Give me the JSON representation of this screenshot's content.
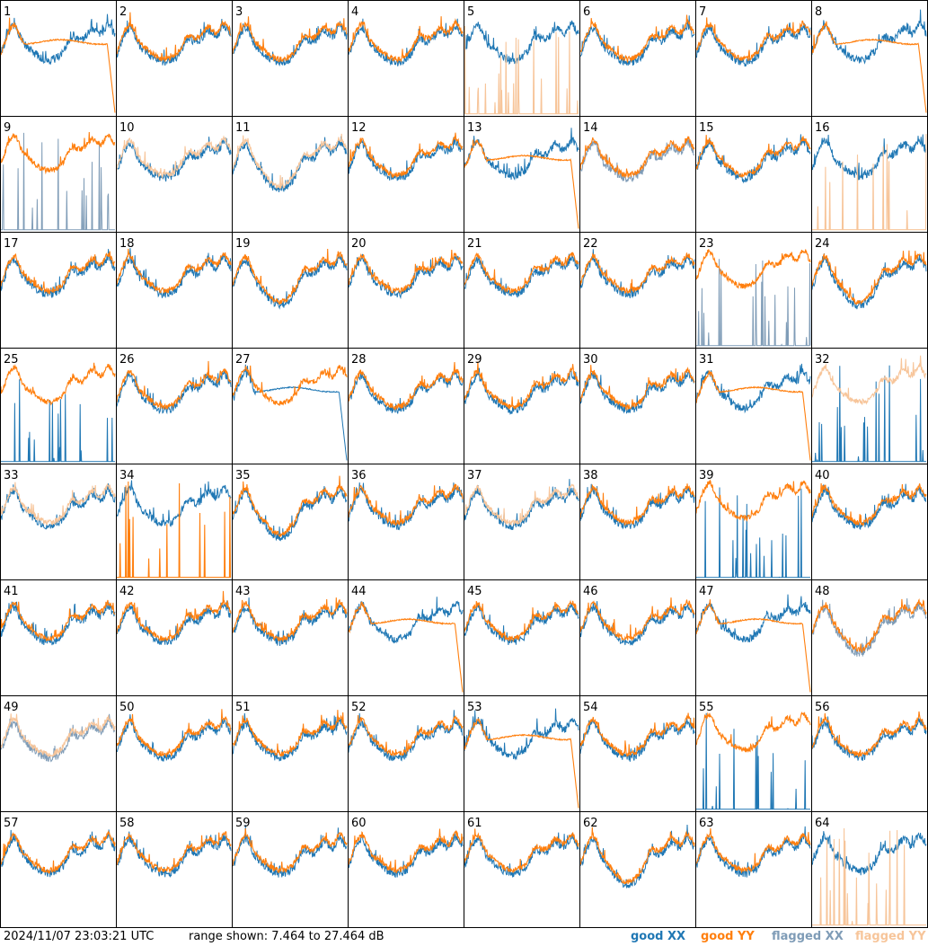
{
  "timestamp": "2024/11/07 23:03:21 UTC",
  "range_text": "range shown: 7.464 to 27.464 dB",
  "legend": [
    {
      "key": "good_xx",
      "label": "good XX",
      "color": "#1f77b4"
    },
    {
      "key": "good_yy",
      "label": "good YY",
      "color": "#ff7f0e"
    },
    {
      "key": "flagged_xx",
      "label": "flagged XX",
      "color": "#7f9cb7"
    },
    {
      "key": "flagged_yy",
      "label": "flagged YY",
      "color": "#f7c59a"
    }
  ],
  "chart_data": {
    "type": "line",
    "grid": {
      "rows": 8,
      "cols": 8
    },
    "ylim": [
      7.464,
      27.464
    ],
    "yunit": "dB",
    "panels": [
      {
        "id": "1",
        "xx": "good",
        "yy": "good",
        "style": "drop_yy"
      },
      {
        "id": "2",
        "xx": "good",
        "yy": "good",
        "style": "normal"
      },
      {
        "id": "3",
        "xx": "good",
        "yy": "good",
        "style": "normal"
      },
      {
        "id": "4",
        "xx": "good",
        "yy": "good",
        "style": "normal"
      },
      {
        "id": "5",
        "xx": "good",
        "yy": "flagged",
        "style": "spikes_yy"
      },
      {
        "id": "6",
        "xx": "good",
        "yy": "good",
        "style": "normal"
      },
      {
        "id": "7",
        "xx": "good",
        "yy": "good",
        "style": "normal"
      },
      {
        "id": "8",
        "xx": "good",
        "yy": "good",
        "style": "drop_yy"
      },
      {
        "id": "9",
        "xx": "flagged",
        "yy": "good",
        "style": "spikes_xx"
      },
      {
        "id": "10",
        "xx": "good",
        "yy": "flagged",
        "style": "normal"
      },
      {
        "id": "11",
        "xx": "good",
        "yy": "flagged",
        "style": "deep"
      },
      {
        "id": "12",
        "xx": "good",
        "yy": "good",
        "style": "normal"
      },
      {
        "id": "13",
        "xx": "good",
        "yy": "good",
        "style": "drop_yy"
      },
      {
        "id": "14",
        "xx": "flagged",
        "yy": "good",
        "style": "normal"
      },
      {
        "id": "15",
        "xx": "good",
        "yy": "good",
        "style": "normal"
      },
      {
        "id": "16",
        "xx": "good",
        "yy": "flagged",
        "style": "spikes_yy"
      },
      {
        "id": "17",
        "xx": "good",
        "yy": "good",
        "style": "normal"
      },
      {
        "id": "18",
        "xx": "good",
        "yy": "good",
        "style": "normal"
      },
      {
        "id": "19",
        "xx": "good",
        "yy": "good",
        "style": "deep"
      },
      {
        "id": "20",
        "xx": "good",
        "yy": "good",
        "style": "normal"
      },
      {
        "id": "21",
        "xx": "good",
        "yy": "good",
        "style": "normal"
      },
      {
        "id": "22",
        "xx": "good",
        "yy": "good",
        "style": "normal"
      },
      {
        "id": "23",
        "xx": "flagged",
        "yy": "good",
        "style": "spikes_xx"
      },
      {
        "id": "24",
        "xx": "good",
        "yy": "good",
        "style": "deep"
      },
      {
        "id": "25",
        "xx": "good",
        "yy": "good",
        "style": "spikes_xx"
      },
      {
        "id": "26",
        "xx": "good",
        "yy": "good",
        "style": "normal"
      },
      {
        "id": "27",
        "xx": "good",
        "yy": "good",
        "style": "drop_xx"
      },
      {
        "id": "28",
        "xx": "good",
        "yy": "good",
        "style": "normal"
      },
      {
        "id": "29",
        "xx": "good",
        "yy": "good",
        "style": "normal"
      },
      {
        "id": "30",
        "xx": "good",
        "yy": "good",
        "style": "normal"
      },
      {
        "id": "31",
        "xx": "good",
        "yy": "good",
        "style": "drop_yy"
      },
      {
        "id": "32",
        "xx": "good",
        "yy": "flagged",
        "style": "spikes_xx"
      },
      {
        "id": "33",
        "xx": "good",
        "yy": "flagged",
        "style": "normal"
      },
      {
        "id": "34",
        "xx": "good",
        "yy": "good",
        "style": "spikes_yy"
      },
      {
        "id": "35",
        "xx": "good",
        "yy": "good",
        "style": "deep"
      },
      {
        "id": "36",
        "xx": "good",
        "yy": "good",
        "style": "normal"
      },
      {
        "id": "37",
        "xx": "good",
        "yy": "flagged",
        "style": "normal"
      },
      {
        "id": "38",
        "xx": "good",
        "yy": "good",
        "style": "normal"
      },
      {
        "id": "39",
        "xx": "good",
        "yy": "good",
        "style": "spikes_xx"
      },
      {
        "id": "40",
        "xx": "good",
        "yy": "good",
        "style": "normal"
      },
      {
        "id": "41",
        "xx": "good",
        "yy": "good",
        "style": "normal"
      },
      {
        "id": "42",
        "xx": "good",
        "yy": "good",
        "style": "normal"
      },
      {
        "id": "43",
        "xx": "good",
        "yy": "good",
        "style": "normal"
      },
      {
        "id": "44",
        "xx": "good",
        "yy": "good",
        "style": "drop_yy"
      },
      {
        "id": "45",
        "xx": "good",
        "yy": "good",
        "style": "normal"
      },
      {
        "id": "46",
        "xx": "good",
        "yy": "good",
        "style": "normal"
      },
      {
        "id": "47",
        "xx": "good",
        "yy": "good",
        "style": "drop_yy"
      },
      {
        "id": "48",
        "xx": "flagged",
        "yy": "good",
        "style": "deep"
      },
      {
        "id": "49",
        "xx": "flagged",
        "yy": "flagged",
        "style": "normal"
      },
      {
        "id": "50",
        "xx": "good",
        "yy": "good",
        "style": "normal"
      },
      {
        "id": "51",
        "xx": "good",
        "yy": "good",
        "style": "normal"
      },
      {
        "id": "52",
        "xx": "good",
        "yy": "good",
        "style": "normal"
      },
      {
        "id": "53",
        "xx": "good",
        "yy": "good",
        "style": "drop_yy"
      },
      {
        "id": "54",
        "xx": "good",
        "yy": "good",
        "style": "normal"
      },
      {
        "id": "55",
        "xx": "good",
        "yy": "good",
        "style": "spikes_xx"
      },
      {
        "id": "56",
        "xx": "good",
        "yy": "good",
        "style": "normal"
      },
      {
        "id": "57",
        "xx": "good",
        "yy": "good",
        "style": "normal"
      },
      {
        "id": "58",
        "xx": "good",
        "yy": "good",
        "style": "normal"
      },
      {
        "id": "59",
        "xx": "good",
        "yy": "good",
        "style": "normal"
      },
      {
        "id": "60",
        "xx": "good",
        "yy": "good",
        "style": "normal"
      },
      {
        "id": "61",
        "xx": "good",
        "yy": "good",
        "style": "normal"
      },
      {
        "id": "62",
        "xx": "good",
        "yy": "good",
        "style": "deep"
      },
      {
        "id": "63",
        "xx": "good",
        "yy": "good",
        "style": "normal"
      },
      {
        "id": "64",
        "xx": "good",
        "yy": "flagged",
        "style": "spikes_yy"
      }
    ]
  }
}
